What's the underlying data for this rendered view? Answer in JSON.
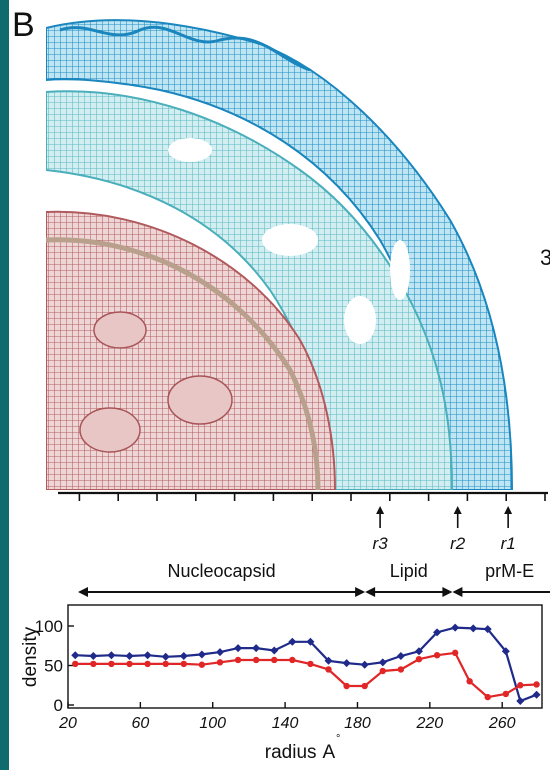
{
  "panel_label": "B",
  "side_fragment": "3",
  "radial_markers": [
    {
      "label": "r3",
      "radius": 185
    },
    {
      "label": "r2",
      "radius": 225
    },
    {
      "label": "r1",
      "radius": 251
    }
  ],
  "regions": [
    {
      "label": "Nucleocapsid",
      "from": 20,
      "to": 168
    },
    {
      "label": "Lipid",
      "from": 168,
      "to": 213
    },
    {
      "label": "prM-E",
      "from": 213,
      "to": 272
    }
  ],
  "colors": {
    "nucleocapsid": "#b86a6a",
    "lipid": "#6ec3c8",
    "prm_e": "#2e96c8",
    "series_blue": "#1f2a8a",
    "series_red": "#e02626"
  },
  "chart_data": {
    "type": "line",
    "xlabel": "radius (Å)",
    "xlabel_main": "radius",
    "xlabel_unit": "A",
    "ylabel": "density",
    "xlim": [
      20,
      282
    ],
    "ylim": [
      0,
      100
    ],
    "xticks": [
      20,
      60,
      100,
      140,
      180,
      220,
      260
    ],
    "yticks": [
      0,
      50,
      100
    ],
    "grid": false,
    "series": [
      {
        "color": "#1f2a8a",
        "marker": "diamond",
        "points": [
          [
            24,
            63
          ],
          [
            34,
            62
          ],
          [
            44,
            63
          ],
          [
            54,
            62
          ],
          [
            64,
            63
          ],
          [
            74,
            61
          ],
          [
            84,
            62
          ],
          [
            94,
            64
          ],
          [
            104,
            67
          ],
          [
            114,
            72
          ],
          [
            124,
            72
          ],
          [
            134,
            69
          ],
          [
            144,
            80
          ],
          [
            154,
            80
          ],
          [
            164,
            56
          ],
          [
            174,
            53
          ],
          [
            184,
            51
          ],
          [
            194,
            54
          ],
          [
            204,
            62
          ],
          [
            214,
            68
          ],
          [
            224,
            92
          ],
          [
            234,
            98
          ],
          [
            244,
            97
          ],
          [
            252,
            96
          ],
          [
            262,
            68
          ],
          [
            270,
            5
          ],
          [
            279,
            13
          ]
        ]
      },
      {
        "color": "#e02626",
        "marker": "circle",
        "points": [
          [
            24,
            52
          ],
          [
            34,
            52
          ],
          [
            44,
            52
          ],
          [
            54,
            52
          ],
          [
            64,
            52
          ],
          [
            74,
            52
          ],
          [
            84,
            52
          ],
          [
            94,
            51
          ],
          [
            104,
            54
          ],
          [
            114,
            57
          ],
          [
            124,
            57
          ],
          [
            134,
            57
          ],
          [
            144,
            57
          ],
          [
            154,
            52
          ],
          [
            164,
            45
          ],
          [
            174,
            24
          ],
          [
            184,
            24
          ],
          [
            194,
            43
          ],
          [
            204,
            45
          ],
          [
            214,
            58
          ],
          [
            224,
            63
          ],
          [
            234,
            66
          ],
          [
            242,
            30
          ],
          [
            252,
            10
          ],
          [
            262,
            14
          ],
          [
            270,
            25
          ],
          [
            279,
            26
          ]
        ]
      }
    ]
  }
}
